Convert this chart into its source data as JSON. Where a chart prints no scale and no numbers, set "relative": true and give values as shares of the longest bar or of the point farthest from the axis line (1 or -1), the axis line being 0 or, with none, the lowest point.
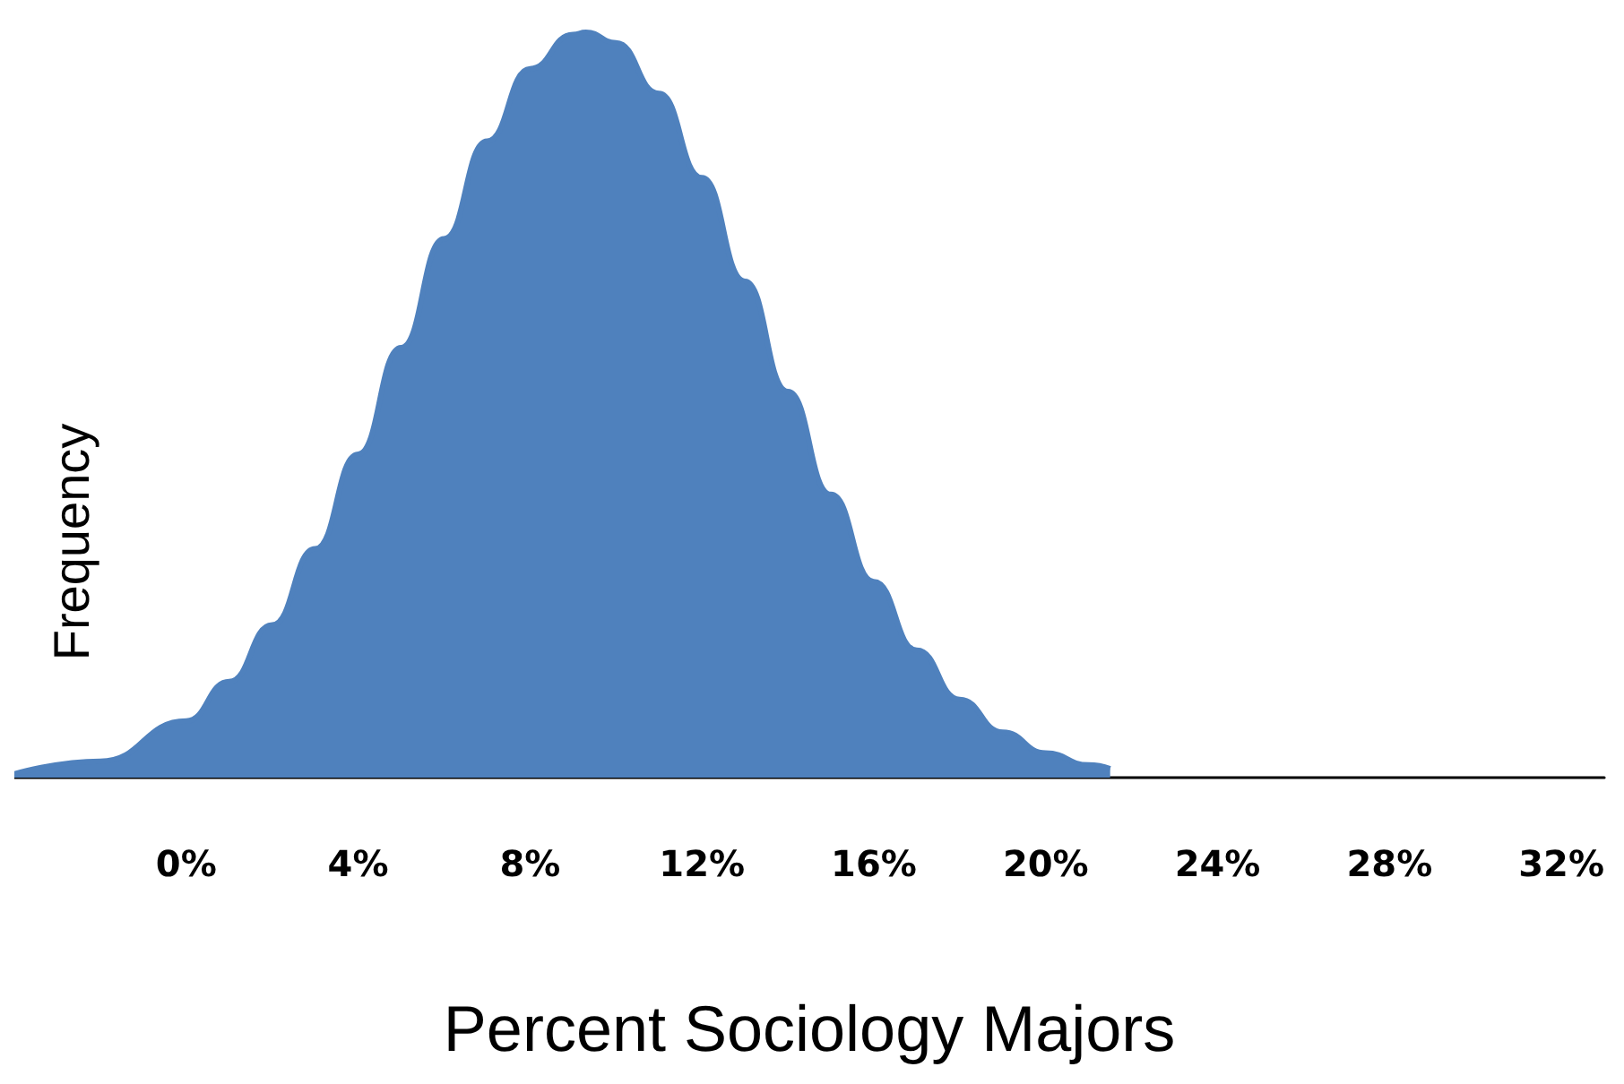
{
  "chart_data": {
    "type": "area",
    "relative": true,
    "xlabel": "Percent Sociology Majors",
    "ylabel": "Frequency",
    "x": [
      -4,
      -2,
      0,
      1,
      2,
      3,
      4,
      5,
      6,
      7,
      8,
      9,
      9.3,
      10,
      11,
      12,
      13,
      14,
      15,
      16,
      17,
      18,
      19,
      20,
      21,
      21.5
    ],
    "series": [
      {
        "color": "#4f81bd",
        "values": [
          0.005,
          0.022,
          0.076,
          0.129,
          0.205,
          0.307,
          0.434,
          0.577,
          0.723,
          0.854,
          0.951,
          0.997,
          1,
          0.986,
          0.918,
          0.805,
          0.666,
          0.518,
          0.38,
          0.263,
          0.171,
          0.105,
          0.061,
          0.033,
          0.017,
          0.012
        ]
      }
    ],
    "xlim": [
      -4,
      33
    ],
    "xticks": [
      {
        "value": 0,
        "label": "0%"
      },
      {
        "value": 4,
        "label": "4%"
      },
      {
        "value": 8,
        "label": "8%"
      },
      {
        "value": 12,
        "label": "12%"
      },
      {
        "value": 16,
        "label": "16%"
      },
      {
        "value": 20,
        "label": "20%"
      },
      {
        "value": 24,
        "label": "24%"
      },
      {
        "value": 28,
        "label": "28%"
      },
      {
        "value": 32,
        "label": "32%"
      }
    ],
    "grid": false
  }
}
